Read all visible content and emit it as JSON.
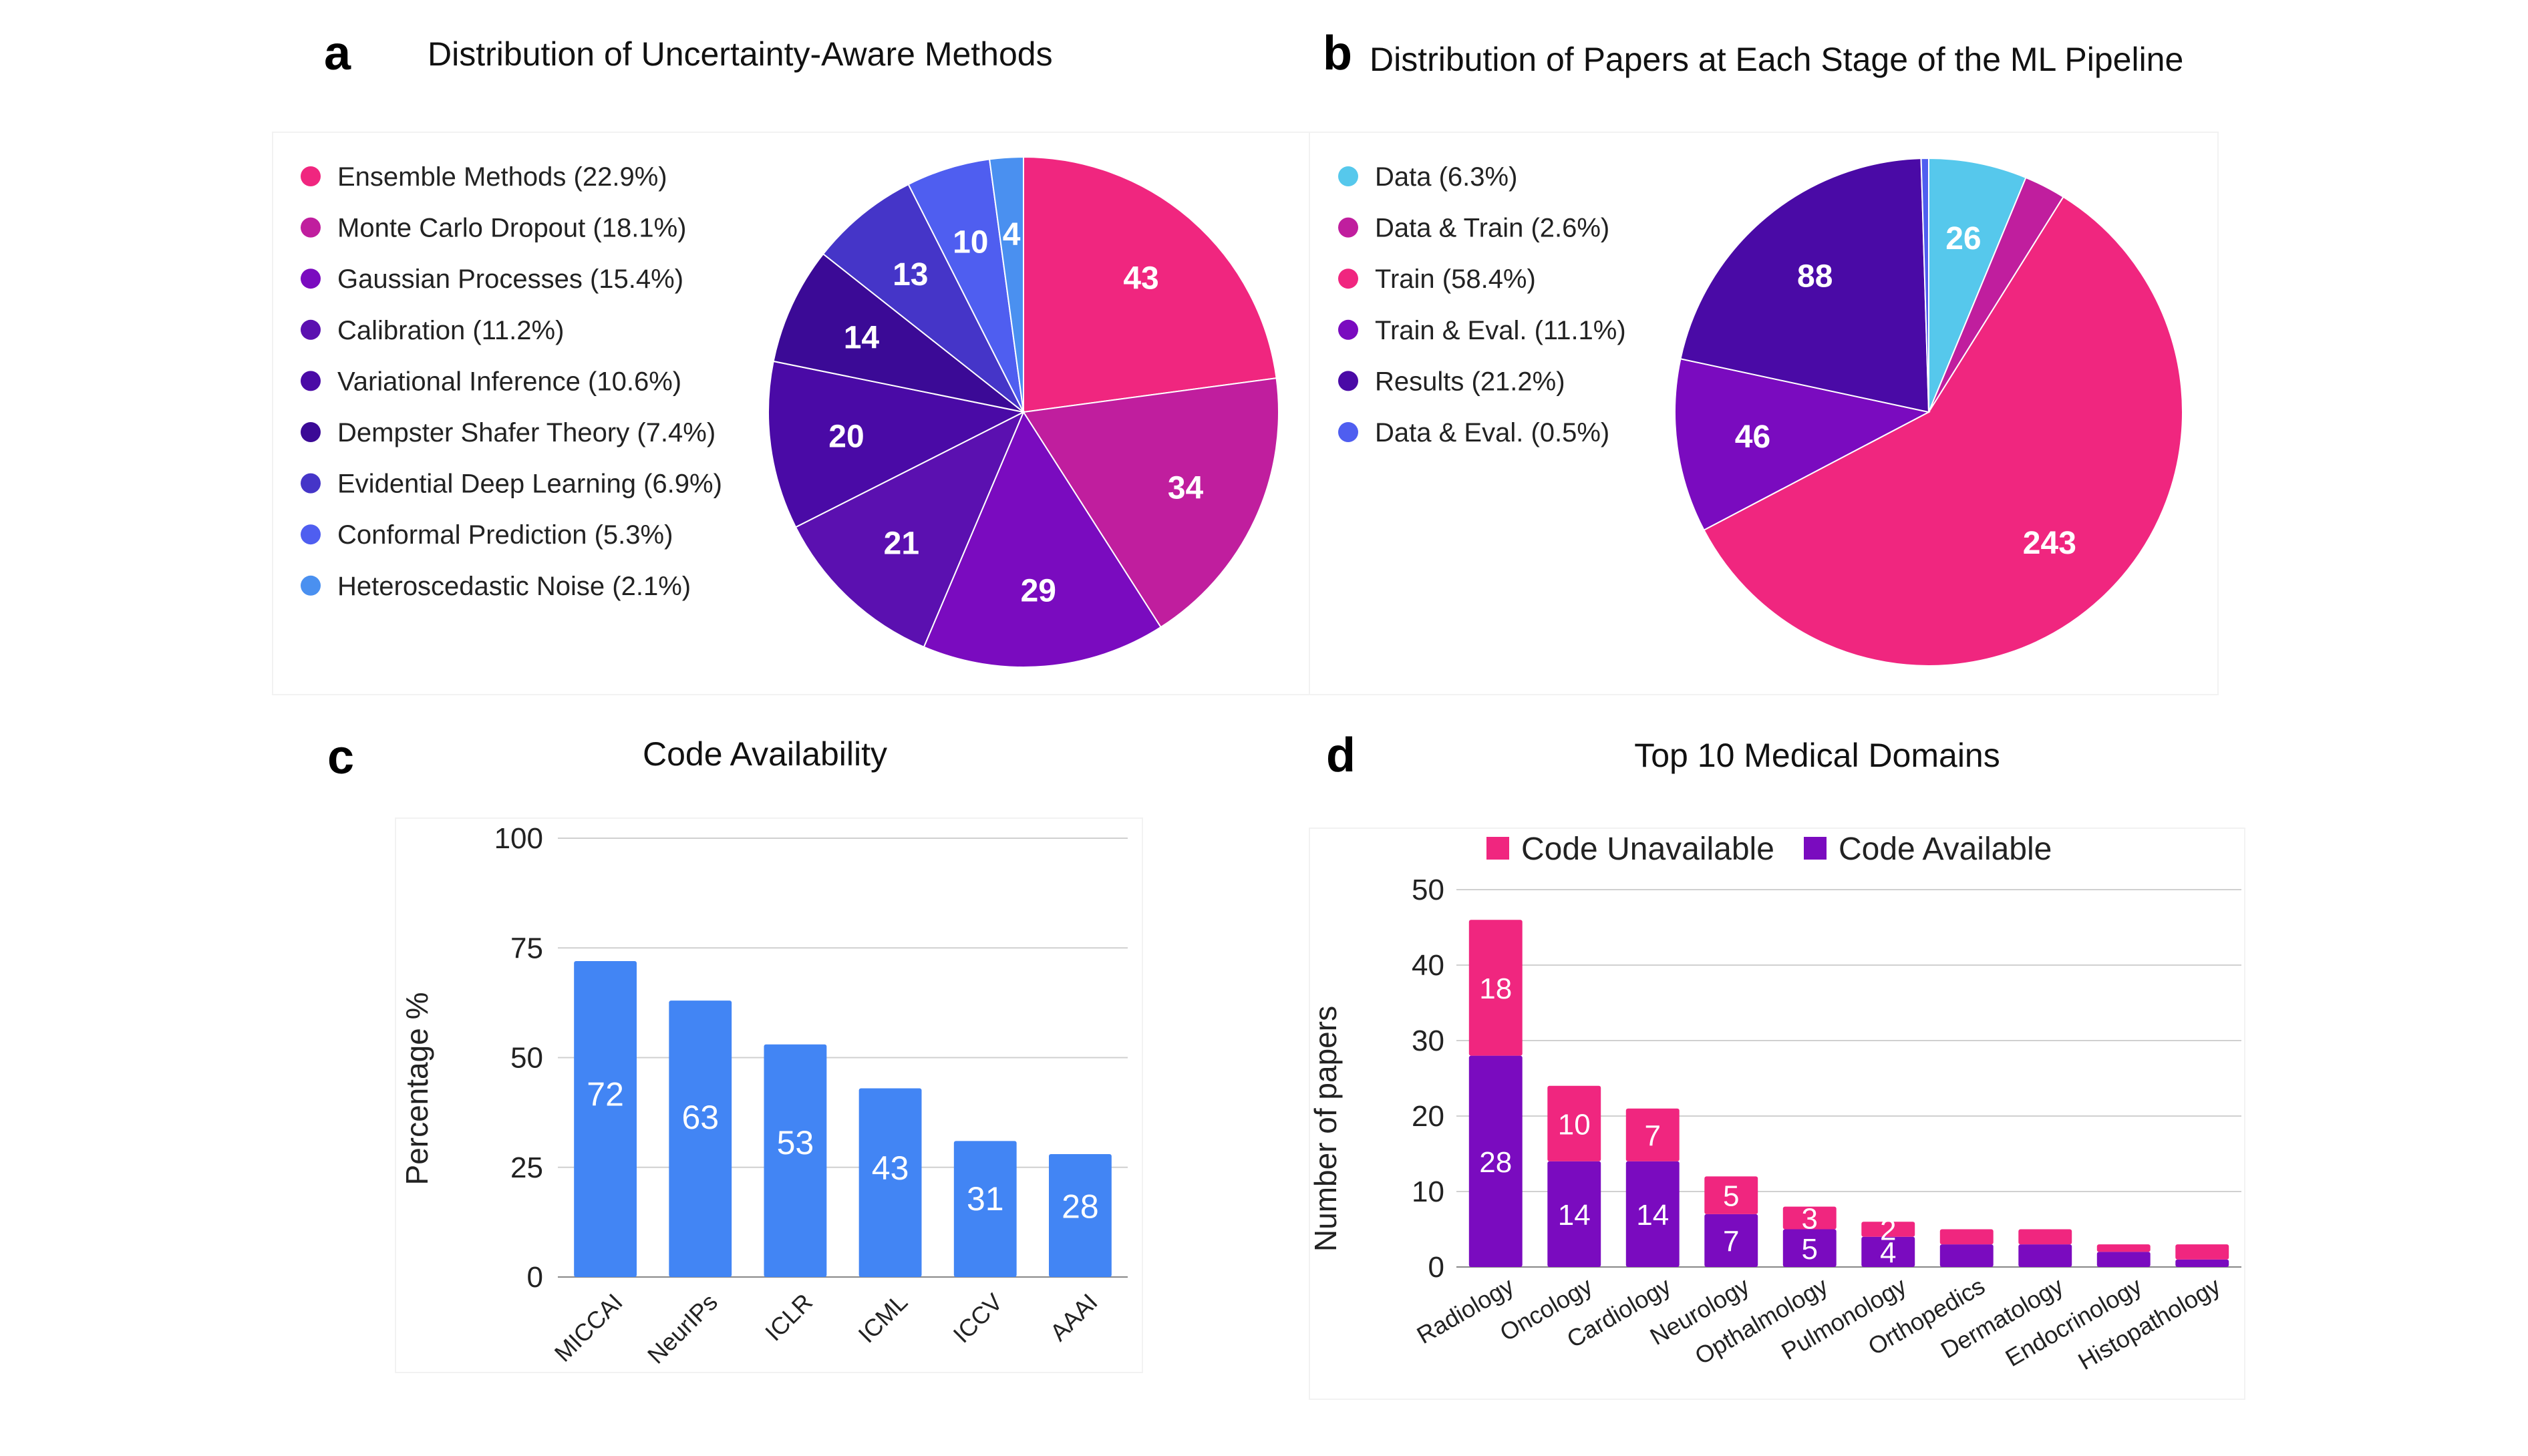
{
  "chart_data": [
    {
      "panel": "a",
      "type": "pie",
      "title": "Distribution of Uncertainty-Aware Methods",
      "slices": [
        {
          "legend": "Ensemble Methods (22.9%)",
          "value": 43,
          "color": "#f0267f"
        },
        {
          "legend": "Monte Carlo Dropout (18.1%)",
          "value": 34,
          "color": "#c01e9e"
        },
        {
          "legend": "Gaussian Processes (15.4%)",
          "value": 29,
          "color": "#7a0bbf"
        },
        {
          "legend": "Calibration (11.2%)",
          "value": 21,
          "color": "#5b10b0"
        },
        {
          "legend": "Variational Inference (10.6%)",
          "value": 20,
          "color": "#4a0aa6"
        },
        {
          "legend": "Dempster Shafer Theory (7.4%)",
          "value": 14,
          "color": "#3b0a96"
        },
        {
          "legend": "Evidential Deep Learning (6.9%)",
          "value": 13,
          "color": "#4535c8"
        },
        {
          "legend": "Conformal Prediction (5.3%)",
          "value": 10,
          "color": "#4f5ef0"
        },
        {
          "legend": "Heteroscedastic Noise (2.1%)",
          "value": 4,
          "color": "#4a90f0"
        }
      ]
    },
    {
      "panel": "b",
      "type": "pie",
      "title": "Distribution of Papers at Each Stage of the ML Pipeline",
      "slices": [
        {
          "legend": "Data (6.3%)",
          "value": 26,
          "label": "26",
          "color": "#56c8ec"
        },
        {
          "legend": "Data & Train (2.6%)",
          "value": 11,
          "label": "",
          "color": "#c01e9e"
        },
        {
          "legend": "Train (58.4%)",
          "value": 243,
          "label": "243",
          "color": "#f0267f"
        },
        {
          "legend": "Train & Eval. (11.1%)",
          "value": 46,
          "label": "46",
          "color": "#7a0bbf"
        },
        {
          "legend": "Results (21.2%)",
          "value": 88,
          "label": "88",
          "color": "#4a0aa6"
        },
        {
          "legend": "Data & Eval. (0.5%)",
          "value": 2,
          "label": "",
          "color": "#4f5ef0"
        }
      ]
    },
    {
      "panel": "c",
      "type": "bar",
      "title": "Code Availability",
      "ylabel": "Percentage %",
      "ylim": [
        0,
        100
      ],
      "yticks": [
        0,
        25,
        50,
        75,
        100
      ],
      "categories": [
        "MICCAI",
        "NeurIPs",
        "ICLR",
        "ICML",
        "ICCV",
        "AAAI"
      ],
      "values": [
        72,
        63,
        53,
        43,
        31,
        28
      ],
      "color": "#4285f4"
    },
    {
      "panel": "d",
      "type": "bar",
      "stacked": true,
      "title": "Top 10 Medical Domains",
      "ylabel": "Number of papers",
      "ylim": [
        0,
        50
      ],
      "yticks": [
        0,
        10,
        20,
        30,
        40,
        50
      ],
      "categories": [
        "Radiology",
        "Oncology",
        "Cardiology",
        "Neurology",
        "Opthalmology",
        "Pulmonology",
        "Orthopedics",
        "Dermatology",
        "Endocrinology",
        "Histopathology"
      ],
      "series": [
        {
          "name": "Code Available",
          "color": "#7a0bbf",
          "values": [
            28,
            14,
            14,
            7,
            5,
            4,
            3,
            3,
            2,
            1
          ],
          "labels": [
            "28",
            "14",
            "14",
            "7",
            "5",
            "4",
            "",
            "",
            "",
            ""
          ]
        },
        {
          "name": "Code Unavailable",
          "color": "#f0267f",
          "values": [
            18,
            10,
            7,
            5,
            3,
            2,
            2,
            2,
            1,
            2
          ],
          "labels": [
            "18",
            "10",
            "7",
            "5",
            "3",
            "2",
            "",
            "",
            "",
            ""
          ]
        }
      ],
      "legend_order": [
        "Code Unavailable",
        "Code Available"
      ]
    }
  ]
}
